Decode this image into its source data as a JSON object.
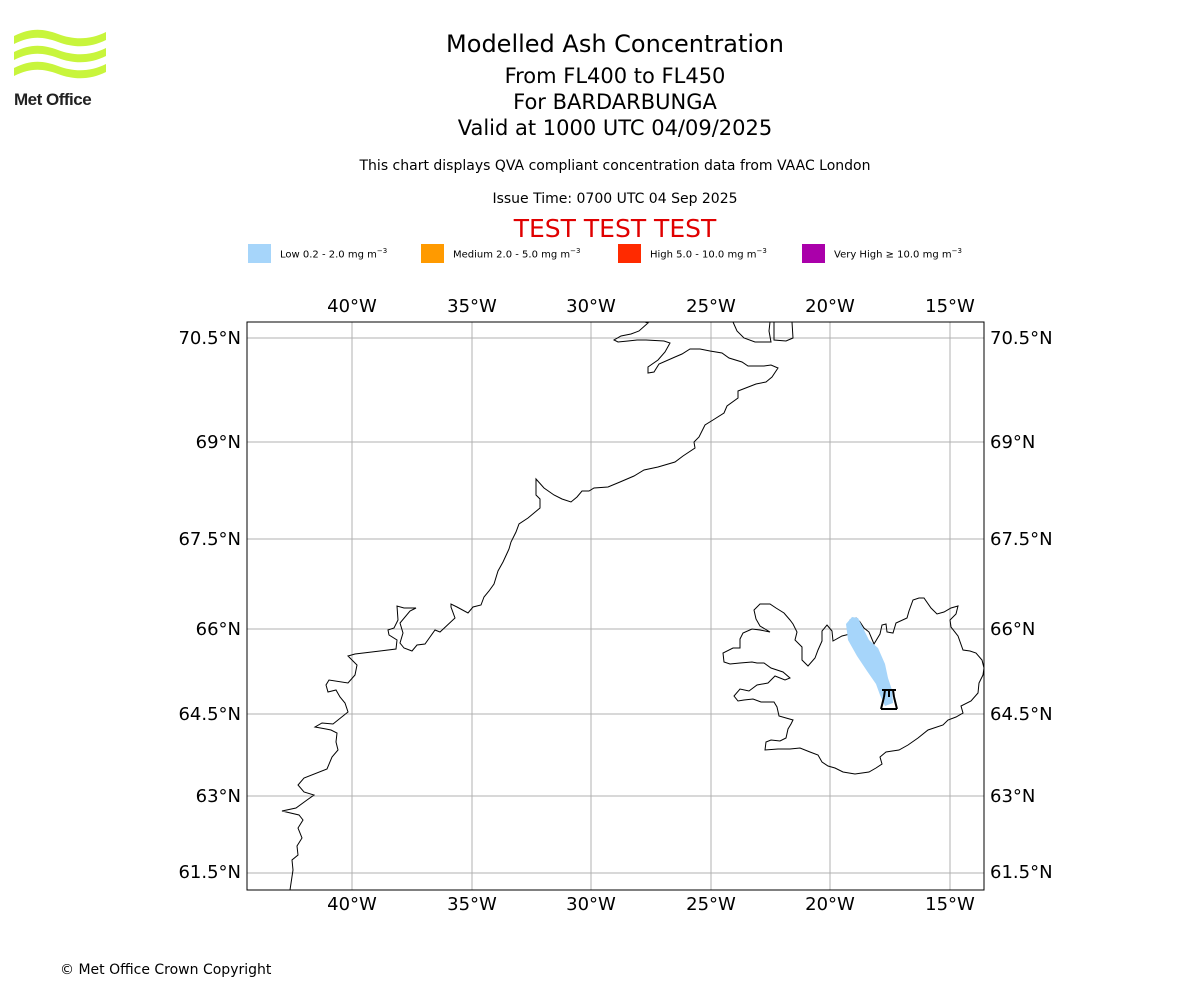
{
  "logo": {
    "text": "Met Office",
    "color": "#c8f53c"
  },
  "title": {
    "line1": "Modelled Ash Concentration",
    "line2": "From FL400 to FL450",
    "line3": "For BARDARBUNGA",
    "line4": "Valid at 1000 UTC 04/09/2025"
  },
  "subtitle": "This chart displays QVA compliant concentration data from VAAC London",
  "issue_time": "Issue Time: 0700 UTC 04 Sep 2025",
  "test_banner": "TEST TEST TEST",
  "legend": [
    {
      "label": "Low 0.2 - 2.0 mg m",
      "exp": "−3",
      "color": "#a6d5fa"
    },
    {
      "label": "Medium 2.0 - 5.0 mg m",
      "exp": "−3",
      "color": "#ff9a00"
    },
    {
      "label": "High 5.0 - 10.0 mg m",
      "exp": "−3",
      "color": "#ff2a00"
    },
    {
      "label": "Very High ≥ 10.0 mg m",
      "exp": "−3",
      "color": "#aa00aa"
    }
  ],
  "map": {
    "lon_ticks": [
      "40°W",
      "35°W",
      "30°W",
      "25°W",
      "20°W",
      "15°W"
    ],
    "lat_ticks": [
      "70.5°N",
      "69°N",
      "67.5°N",
      "66°N",
      "64.5°N",
      "63°N",
      "61.5°N"
    ],
    "volcano": "BARDARBUNGA",
    "volcano_icon": "volcano-icon"
  },
  "copyright": "© Met Office Crown Copyright"
}
